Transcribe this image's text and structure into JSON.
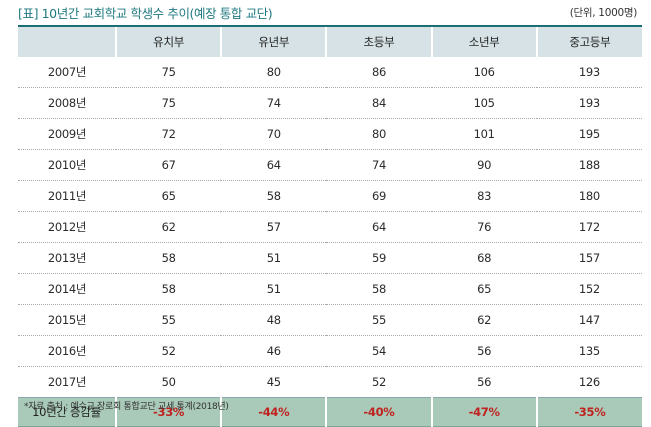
{
  "title": "[표] 10년간 교회학교 학생수 추이(예장 통합 교단)",
  "unit": "(단위, 1000명)",
  "table": {
    "headers": [
      "",
      "유치부",
      "유년부",
      "초등부",
      "소년부",
      "중고등부"
    ],
    "rows": [
      [
        "2007년",
        "75",
        "80",
        "86",
        "106",
        "193"
      ],
      [
        "2008년",
        "75",
        "74",
        "84",
        "105",
        "193"
      ],
      [
        "2009년",
        "72",
        "70",
        "80",
        "101",
        "195"
      ],
      [
        "2010년",
        "67",
        "64",
        "74",
        "90",
        "188"
      ],
      [
        "2011년",
        "65",
        "58",
        "69",
        "83",
        "180"
      ],
      [
        "2012년",
        "62",
        "57",
        "64",
        "76",
        "172"
      ],
      [
        "2013년",
        "58",
        "51",
        "59",
        "68",
        "157"
      ],
      [
        "2014년",
        "58",
        "51",
        "58",
        "65",
        "152"
      ],
      [
        "2015년",
        "55",
        "48",
        "55",
        "62",
        "147"
      ],
      [
        "2016년",
        "52",
        "46",
        "54",
        "56",
        "135"
      ],
      [
        "2017년",
        "50",
        "45",
        "52",
        "56",
        "126"
      ]
    ],
    "footer": [
      "10년간 증감률",
      "-33%",
      "-44%",
      "-40%",
      "-47%",
      "-35%"
    ]
  },
  "source": "*자료 출처 : 예수교 장로회 통합교단 교세 통계(2018년)",
  "colors": {
    "title": "#1f7a80",
    "header_bg": "#d6e2e5",
    "footer_bg": "#a9c9b9",
    "negative_value": "#c0221f"
  }
}
